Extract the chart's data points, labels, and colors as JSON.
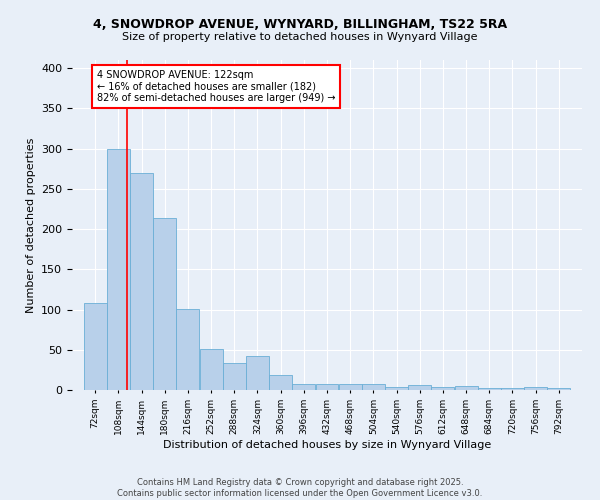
{
  "title1": "4, SNOWDROP AVENUE, WYNYARD, BILLINGHAM, TS22 5RA",
  "title2": "Size of property relative to detached houses in Wynyard Village",
  "xlabel": "Distribution of detached houses by size in Wynyard Village",
  "ylabel": "Number of detached properties",
  "bar_color": "#b8d0ea",
  "bar_edge_color": "#6aaed6",
  "bg_color": "#e8eff8",
  "grid_color": "#ffffff",
  "annotation_text": "4 SNOWDROP AVENUE: 122sqm\n← 16% of detached houses are smaller (182)\n82% of semi-detached houses are larger (949) →",
  "property_line_x": 122,
  "categories": [
    72,
    108,
    144,
    180,
    216,
    252,
    288,
    324,
    360,
    396,
    432,
    468,
    504,
    540,
    576,
    612,
    648,
    684,
    720,
    756,
    792
  ],
  "values": [
    108,
    299,
    270,
    214,
    101,
    51,
    34,
    42,
    19,
    8,
    8,
    7,
    8,
    4,
    6,
    4,
    5,
    3,
    2,
    4,
    3
  ],
  "footnote": "Contains HM Land Registry data © Crown copyright and database right 2025.\nContains public sector information licensed under the Open Government Licence v3.0.",
  "bin_width": 36,
  "ylim": [
    0,
    410
  ],
  "yticks": [
    0,
    50,
    100,
    150,
    200,
    250,
    300,
    350,
    400
  ]
}
